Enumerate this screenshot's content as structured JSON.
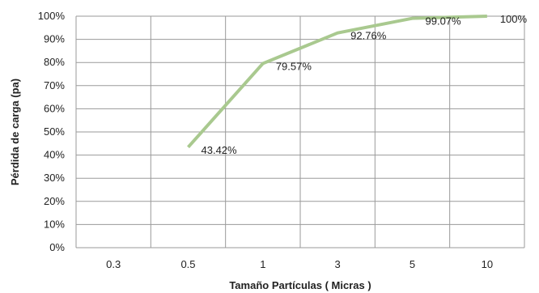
{
  "chart_data": {
    "type": "line",
    "xlabel": "Tamaño Partículas ( Micras )",
    "ylabel": "Pérdida de carga (pa)",
    "categories": [
      "0.3",
      "0.5",
      "1",
      "3",
      "5",
      "10"
    ],
    "y_ticks": [
      "0%",
      "10%",
      "20%",
      "30%",
      "40%",
      "50%",
      "60%",
      "70%",
      "80%",
      "90%",
      "100%"
    ],
    "ylim": [
      0,
      100
    ],
    "grid": true,
    "series": [
      {
        "values": [
          null,
          43.42,
          79.57,
          92.76,
          99.07,
          100
        ],
        "labels": [
          "",
          "43.42%",
          "79.57%",
          "92.76%",
          "99.07%",
          "100%"
        ],
        "color": "#a9c98f"
      }
    ]
  }
}
